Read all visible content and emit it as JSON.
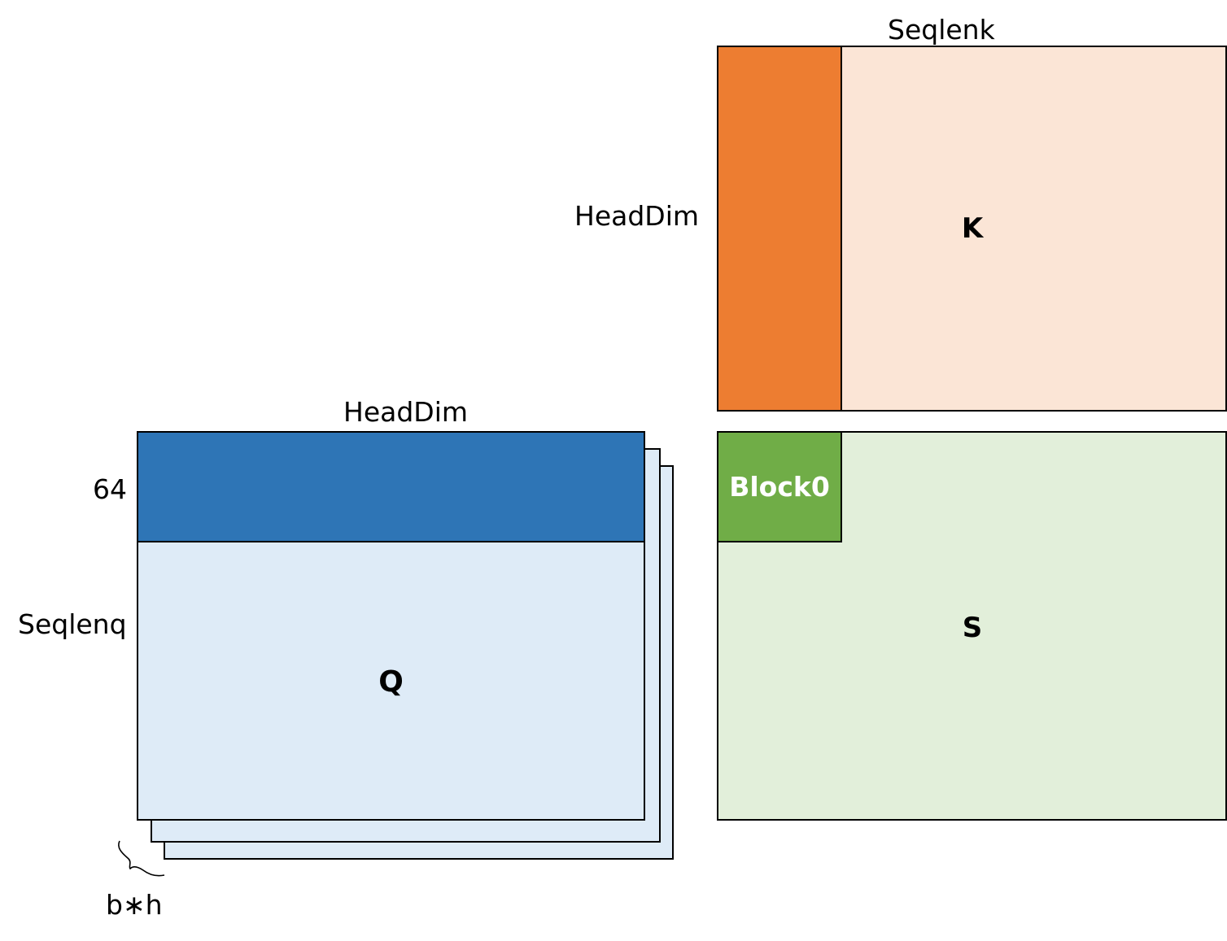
{
  "colors": {
    "k_block": "#ED7D31",
    "k_fill": "#FBE5D6",
    "s_block": "#70AD47",
    "s_fill": "#E2EFDA",
    "q_block": "#2E75B6",
    "q_fill": "#DEEBF7",
    "stroke": "#000000"
  },
  "k_matrix": {
    "name": "K",
    "top_label": "Seqlenk",
    "left_label": "HeadDim"
  },
  "s_matrix": {
    "name": "S",
    "block_label": "Block0"
  },
  "q_matrix": {
    "name": "Q",
    "top_label": "HeadDim",
    "block_rows_label": "64",
    "left_label": "Seqlenq",
    "stack_label": "b∗h"
  }
}
